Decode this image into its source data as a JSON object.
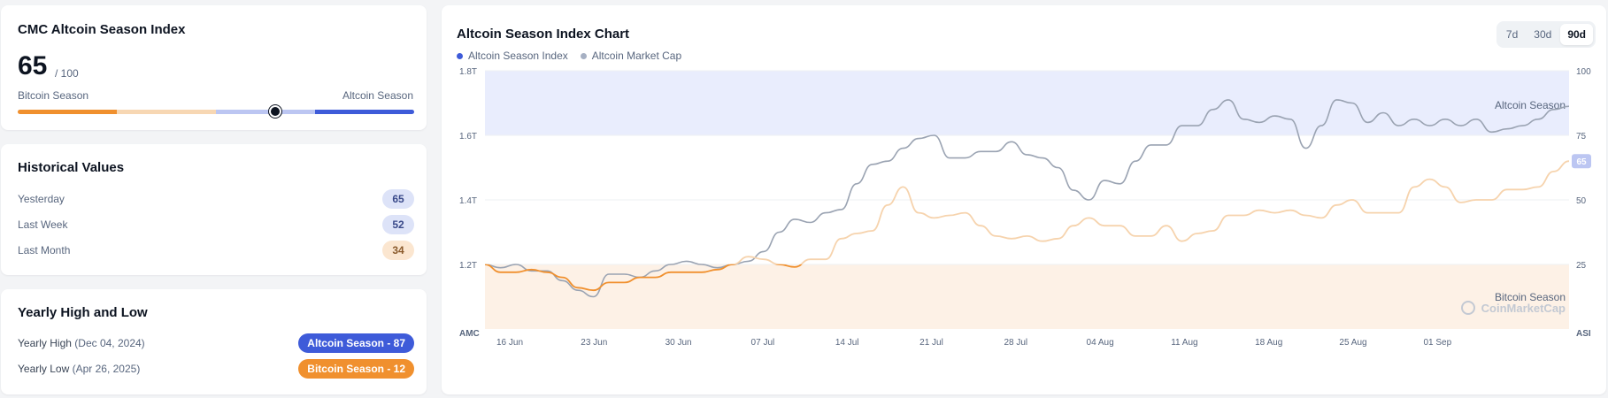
{
  "index_card": {
    "title": "CMC Altcoin Season Index",
    "value": "65",
    "max": "/ 100",
    "left_label": "Bitcoin Season",
    "right_label": "Altcoin Season",
    "current": 65,
    "colors": [
      "#f0902e",
      "#f7d7b3",
      "#bcc6f2",
      "#3e5bd9"
    ]
  },
  "history": {
    "title": "Historical Values",
    "rows": [
      {
        "label": "Yesterday",
        "value": "65",
        "tone": "blue"
      },
      {
        "label": "Last Week",
        "value": "52",
        "tone": "blue"
      },
      {
        "label": "Last Month",
        "value": "34",
        "tone": "orange"
      }
    ]
  },
  "yearly": {
    "title": "Yearly High and Low",
    "high": {
      "label": "Yearly High",
      "date": "(Dec 04, 2024)",
      "badge": "Altcoin Season - 87",
      "color": "#3e5bd9"
    },
    "low": {
      "label": "Yearly Low",
      "date": "(Apr 26, 2025)",
      "badge": "Bitcoin Season - 12",
      "color": "#f0902e"
    }
  },
  "chart_header": {
    "title": "Altcoin Season Index Chart",
    "legend": [
      {
        "label": "Altcoin Season Index",
        "color": "#3e5bd9"
      },
      {
        "label": "Altcoin Market Cap",
        "color": "#a6b0c3"
      }
    ],
    "ranges": [
      {
        "label": "7d",
        "active": false
      },
      {
        "label": "30d",
        "active": false
      },
      {
        "label": "90d",
        "active": true
      }
    ]
  },
  "chart_data": {
    "type": "line",
    "x_labels": [
      "16 Jun",
      "23 Jun",
      "30 Jun",
      "07 Jul",
      "14 Jul",
      "21 Jul",
      "28 Jul",
      "04 Aug",
      "11 Aug",
      "18 Aug",
      "25 Aug",
      "01 Sep"
    ],
    "left_axis": {
      "name": "AMC",
      "ticks": [
        "1.8T",
        "1.6T",
        "1.4T",
        "1.2T"
      ],
      "range": [
        1.0,
        1.8
      ],
      "unit": "T"
    },
    "right_axis": {
      "name": "ASI",
      "ticks": [
        "100",
        "75",
        "50",
        "25"
      ],
      "range": [
        0,
        100
      ]
    },
    "zones": {
      "altcoin_label": "Altcoin Season",
      "altcoin_from": 75,
      "bitcoin_label": "Bitcoin Season",
      "bitcoin_to": 25
    },
    "current_label": "65",
    "watermark": "CoinMarketCap",
    "series": [
      {
        "name": "Altcoin Market Cap",
        "axis": "left",
        "color": "#9aa3b2",
        "values": [
          1.2,
          1.19,
          1.2,
          1.18,
          1.18,
          1.15,
          1.12,
          1.1,
          1.17,
          1.17,
          1.16,
          1.18,
          1.2,
          1.21,
          1.2,
          1.19,
          1.2,
          1.21,
          1.24,
          1.3,
          1.34,
          1.33,
          1.36,
          1.37,
          1.45,
          1.51,
          1.52,
          1.56,
          1.59,
          1.6,
          1.53,
          1.53,
          1.55,
          1.55,
          1.58,
          1.54,
          1.53,
          1.5,
          1.43,
          1.4,
          1.46,
          1.45,
          1.52,
          1.57,
          1.57,
          1.63,
          1.63,
          1.68,
          1.71,
          1.65,
          1.64,
          1.66,
          1.65,
          1.56,
          1.63,
          1.71,
          1.7,
          1.64,
          1.67,
          1.63,
          1.65,
          1.63,
          1.65,
          1.63,
          1.65,
          1.61,
          1.62,
          1.63,
          1.65,
          1.68,
          1.69
        ]
      },
      {
        "name": "Altcoin Season Index",
        "axis": "right",
        "color": "#f0902e",
        "values": [
          25,
          22,
          22,
          23,
          22,
          20,
          16,
          15,
          18,
          18,
          20,
          20,
          22,
          22,
          22,
          23,
          25,
          28,
          27,
          25,
          24,
          27,
          27,
          35,
          37,
          38,
          48,
          55,
          45,
          43,
          44,
          45,
          40,
          36,
          35,
          36,
          34,
          35,
          40,
          43,
          40,
          40,
          36,
          36,
          40,
          34,
          37,
          38,
          44,
          44,
          46,
          45,
          46,
          44,
          43,
          48,
          50,
          45,
          45,
          45,
          55,
          58,
          55,
          49,
          50,
          50,
          54,
          54,
          55,
          61,
          65
        ]
      }
    ]
  }
}
